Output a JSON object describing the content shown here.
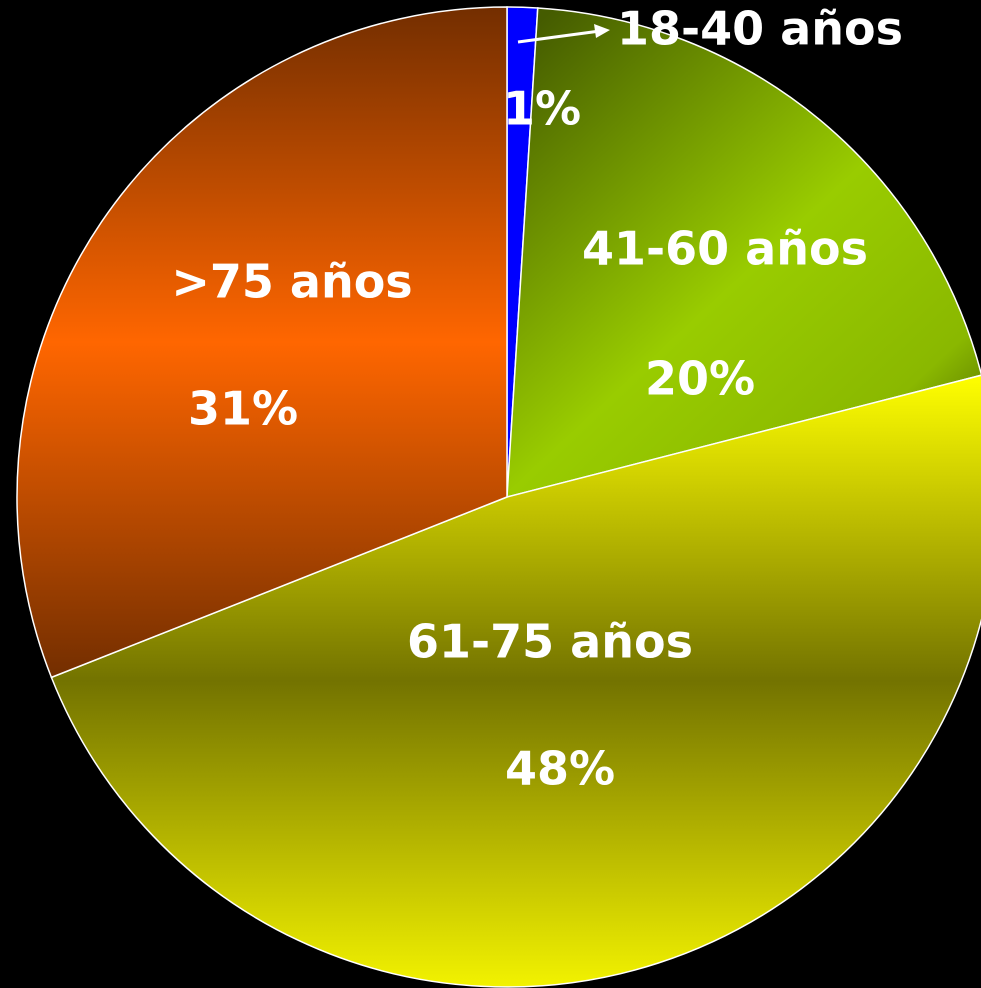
{
  "chart_data": {
    "type": "pie",
    "categories": [
      "18-40 años",
      "41-60 años",
      "61-75 años",
      ">75 años"
    ],
    "values": [
      1,
      20,
      48,
      31
    ],
    "value_labels": [
      "1%",
      "20%",
      "48%",
      "31%"
    ],
    "colors": [
      "#0000ff",
      "#99cc00",
      "#ffff00",
      "#ff6600"
    ]
  }
}
